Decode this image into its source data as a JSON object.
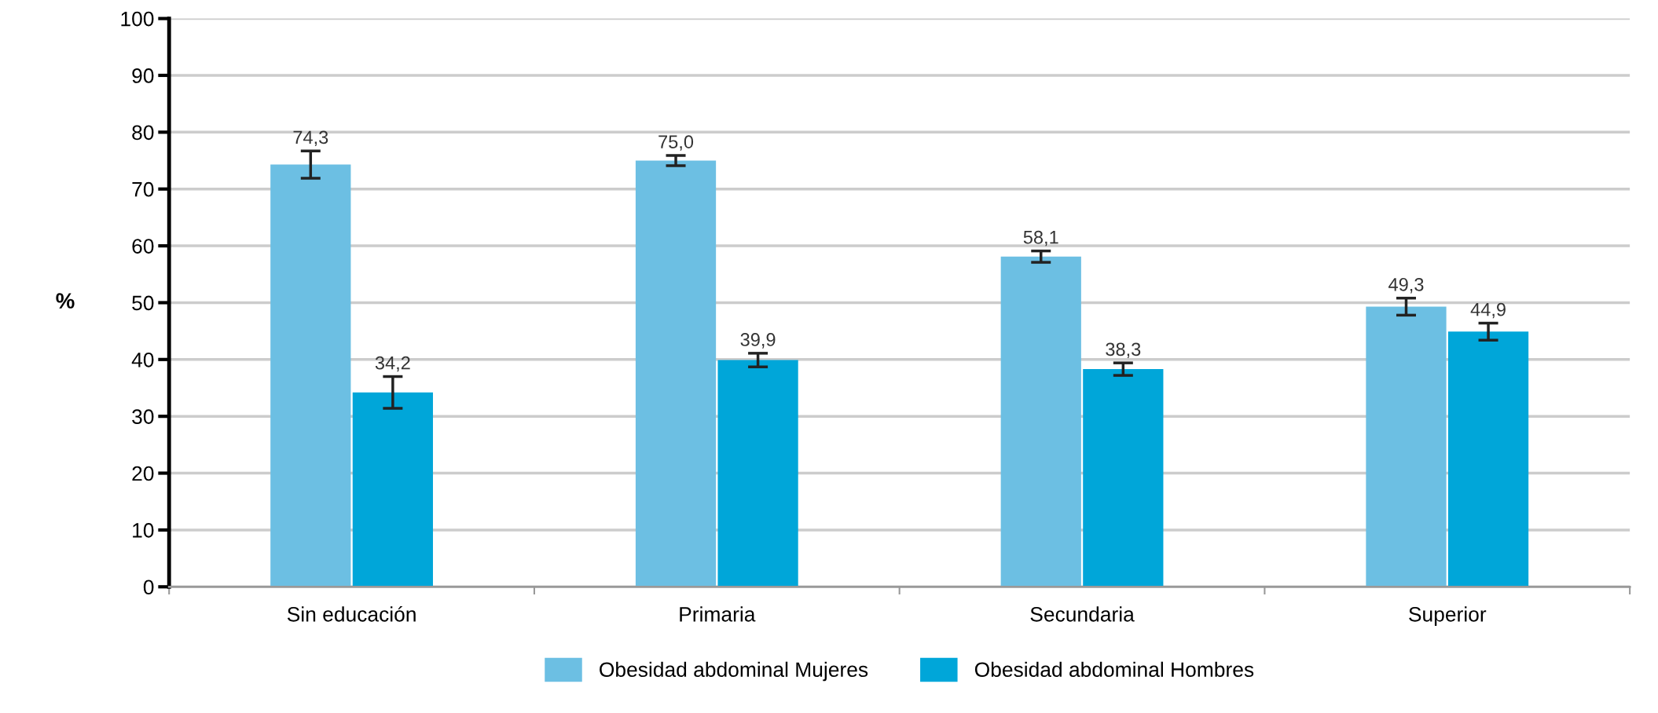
{
  "chart_data": {
    "type": "bar",
    "ylabel": "%",
    "categories": [
      "Sin educación",
      "Primaria",
      "Secundaria",
      "Superior"
    ],
    "series": [
      {
        "name": "Obesidad abdominal Mujeres",
        "color": "#6cbfe3",
        "values": [
          74.3,
          75.0,
          58.1,
          49.3
        ],
        "errors": [
          2.4,
          0.9,
          1.0,
          1.5
        ],
        "value_labels": [
          "74,3",
          "75,0",
          "58,1",
          "49,3"
        ]
      },
      {
        "name": "Obesidad abdominal Hombres",
        "color": "#00a6d9",
        "values": [
          34.2,
          39.9,
          38.3,
          44.9
        ],
        "errors": [
          2.8,
          1.2,
          1.1,
          1.5
        ],
        "value_labels": [
          "34,2",
          "39,9",
          "38,3",
          "44,9"
        ]
      }
    ],
    "ylim": [
      0,
      100
    ],
    "yticks": [
      0,
      10,
      20,
      30,
      40,
      50,
      60,
      70,
      80,
      90,
      100
    ],
    "grid": "y",
    "legend": "bottom"
  }
}
